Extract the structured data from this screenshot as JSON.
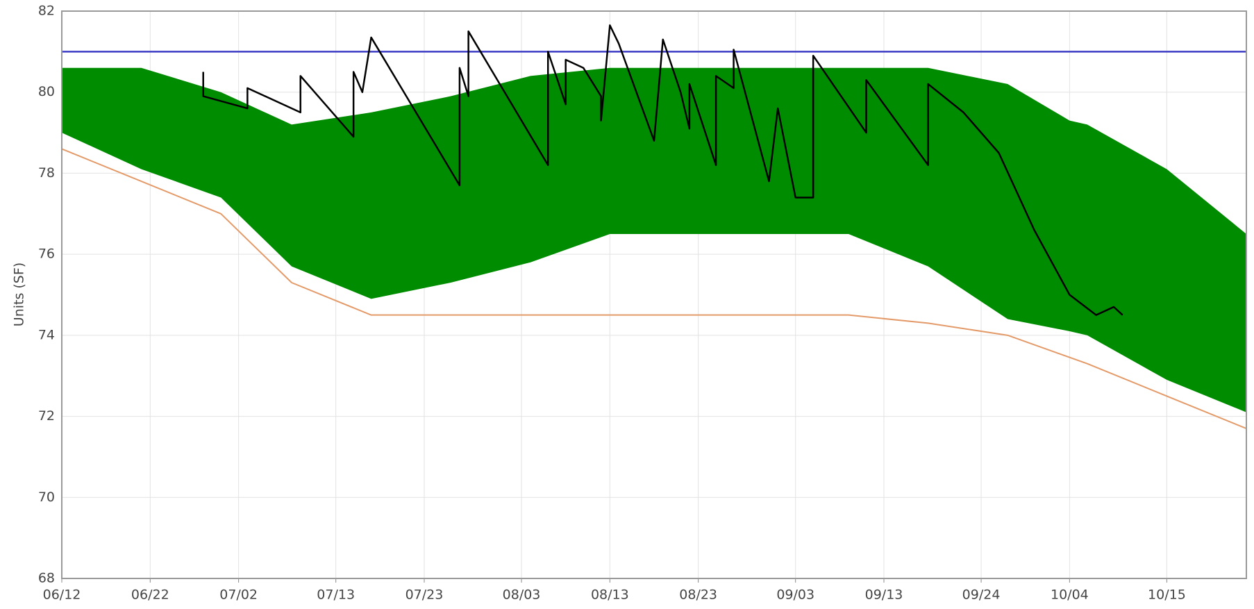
{
  "chart_data": {
    "type": "line",
    "ylabel": "Units (SF)",
    "xlim": [
      "06/12",
      "10/24"
    ],
    "xticks": [
      "06/12",
      "06/22",
      "07/02",
      "07/13",
      "07/23",
      "08/03",
      "08/13",
      "08/23",
      "09/03",
      "09/13",
      "09/24",
      "10/04",
      "10/15"
    ],
    "ylim": [
      68,
      82
    ],
    "yticks": [
      68,
      70,
      72,
      74,
      76,
      78,
      80,
      82
    ],
    "grid": true,
    "series": [
      {
        "type": "band",
        "color": "#008c00",
        "x": [
          "06/12",
          "06/21",
          "06/30",
          "07/08",
          "07/17",
          "07/26",
          "08/04",
          "08/13",
          "09/09",
          "09/18",
          "09/27",
          "10/04",
          "10/06",
          "10/15",
          "10/24"
        ],
        "high": [
          80.6,
          80.6,
          80.0,
          79.2,
          79.5,
          79.9,
          80.4,
          80.6,
          80.6,
          80.6,
          80.2,
          79.3,
          79.2,
          78.1,
          76.5
        ],
        "low": [
          79.0,
          78.1,
          77.4,
          75.7,
          74.9,
          75.3,
          75.8,
          76.5,
          76.5,
          75.7,
          74.4,
          74.1,
          74.0,
          72.9,
          72.1
        ]
      },
      {
        "type": "line",
        "color": "#3b3bc4",
        "width": 2.5,
        "x": [
          "06/12",
          "10/24"
        ],
        "values": [
          81,
          81
        ]
      },
      {
        "type": "line",
        "color": "#e49a68",
        "width": 2,
        "x": [
          "06/12",
          "06/30",
          "07/08",
          "07/17",
          "09/09",
          "09/18",
          "09/27",
          "10/06",
          "10/15",
          "10/24"
        ],
        "values": [
          78.6,
          77.0,
          75.3,
          74.5,
          74.5,
          74.3,
          74.0,
          73.3,
          72.5,
          71.7
        ]
      },
      {
        "type": "line",
        "color": "#000000",
        "width": 2.5,
        "x": [
          "06/28",
          "06/28",
          "07/03",
          "07/03",
          "07/09",
          "07/09",
          "07/15",
          "07/15",
          "07/16",
          "07/17",
          "07/27",
          "07/27",
          "07/28",
          "07/28",
          "08/06",
          "08/06",
          "08/08",
          "08/08",
          "08/10",
          "08/12",
          "08/12",
          "08/13",
          "08/14",
          "08/18",
          "08/19",
          "08/21",
          "08/22",
          "08/22",
          "08/25",
          "08/25",
          "08/27",
          "08/27",
          "08/31",
          "09/01",
          "09/03",
          "09/05",
          "09/05",
          "09/11",
          "09/11",
          "09/18",
          "09/18",
          "09/22",
          "09/26",
          "09/30",
          "10/04",
          "10/07",
          "10/09",
          "10/10"
        ],
        "values": [
          80.5,
          79.9,
          79.6,
          80.1,
          79.5,
          80.4,
          78.9,
          80.5,
          80.0,
          81.35,
          77.7,
          80.6,
          79.9,
          81.5,
          78.2,
          81.0,
          79.7,
          80.8,
          80.6,
          79.9,
          79.3,
          81.65,
          81.2,
          78.8,
          81.3,
          80.0,
          79.1,
          80.2,
          78.2,
          80.4,
          80.1,
          81.05,
          77.8,
          79.6,
          77.4,
          77.4,
          80.9,
          79.0,
          80.3,
          78.2,
          80.2,
          79.5,
          78.5,
          76.6,
          75.0,
          74.5,
          74.7,
          74.5
        ]
      }
    ]
  }
}
